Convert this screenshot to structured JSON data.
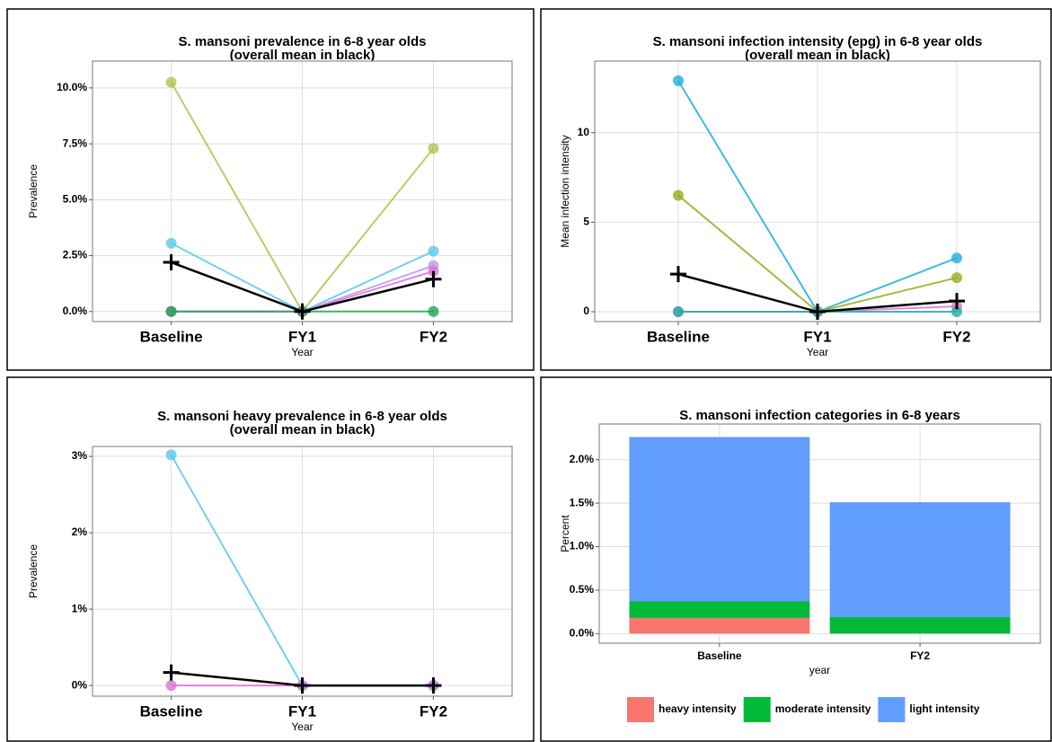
{
  "chart_data": [
    {
      "type": "line",
      "title": "S. mansoni prevalence in 6-8 year olds",
      "subtitle": "(overall mean in black)",
      "x_label": "Year",
      "y_label": "Prevalence",
      "categories": [
        "Baseline",
        "FY1",
        "FY2"
      ],
      "ylim": [
        -0.45,
        11.2
      ],
      "yticks": [
        {
          "value": 0,
          "label": "0.0%"
        },
        {
          "value": 2.5,
          "label": "2.5%"
        },
        {
          "value": 5,
          "label": "5.0%"
        },
        {
          "value": 7.5,
          "label": "7.5%"
        },
        {
          "value": 10,
          "label": "10.0%"
        }
      ],
      "grid": true,
      "series": [
        {
          "color": "#b8c050",
          "values": [
            10.25,
            0,
            7.3
          ]
        },
        {
          "color": "#5ac8ec",
          "values": [
            3.05,
            0,
            2.7
          ]
        },
        {
          "color": "#b59be8",
          "values": [
            0,
            0,
            2.05
          ]
        },
        {
          "color": "#e070d8",
          "values": [
            0,
            0,
            1.8
          ]
        },
        {
          "color": "#22a555",
          "values": [
            0,
            0,
            0
          ]
        },
        {
          "color": "#000000",
          "marker": "plus",
          "values": [
            2.2,
            0,
            1.45
          ]
        }
      ]
    },
    {
      "type": "line",
      "title": "S. mansoni infection intensity (epg) in 6-8 year olds",
      "subtitle": "(overall mean in black)",
      "x_label": "Year",
      "y_label": "Mean infection intensity",
      "categories": [
        "Baseline",
        "FY1",
        "FY2"
      ],
      "ylim": [
        -0.55,
        14
      ],
      "yticks": [
        0,
        5,
        10
      ],
      "grid": true,
      "series": [
        {
          "color": "#1ab0d8",
          "values": [
            12.9,
            0,
            3.0
          ]
        },
        {
          "color": "#9aaa1a",
          "values": [
            6.5,
            0,
            1.9
          ]
        },
        {
          "color": "#e070d8",
          "values": [
            0,
            0,
            0.3
          ]
        },
        {
          "color": "#20b0a0",
          "values": [
            0,
            0,
            0
          ]
        },
        {
          "color": "#000000",
          "marker": "plus",
          "values": [
            2.1,
            0,
            0.6
          ]
        }
      ]
    },
    {
      "type": "line",
      "title": "S. mansoni heavy prevalence in 6-8 year olds",
      "subtitle": "(overall mean in black)",
      "x_label": "Year",
      "y_label": "Prevalence",
      "categories": [
        "Baseline",
        "FY1",
        "FY2"
      ],
      "ylim": [
        -0.14,
        3.13
      ],
      "yticks": [
        {
          "value": 0,
          "label": "0%"
        },
        {
          "value": 1,
          "label": "1%"
        },
        {
          "value": 2,
          "label": "2%"
        },
        {
          "value": 3,
          "label": "3%"
        }
      ],
      "grid": true,
      "series": [
        {
          "color": "#5ac8ec",
          "values": [
            3.02,
            0,
            0
          ]
        },
        {
          "color": "#e070d8",
          "values": [
            0,
            0,
            0
          ]
        },
        {
          "color": "#000000",
          "marker": "plus",
          "values": [
            0.17,
            0,
            0
          ]
        }
      ]
    },
    {
      "type": "stacked_bar",
      "title": "S. mansoni infection categories in 6-8 years",
      "x_label": "year",
      "y_label": "Percent",
      "categories": [
        "Baseline",
        "FY2"
      ],
      "ylim": [
        -0.11,
        2.41
      ],
      "yticks": [
        {
          "value": 0,
          "label": "0.0%"
        },
        {
          "value": 0.5,
          "label": "0.5%"
        },
        {
          "value": 1,
          "label": "1.0%"
        },
        {
          "value": 1.5,
          "label": "1.5%"
        },
        {
          "value": 2,
          "label": "2.0%"
        }
      ],
      "grid": true,
      "legend": "bottom",
      "series": [
        {
          "name": "heavy intensity",
          "color": "#f8766d",
          "values": [
            0.18,
            0
          ]
        },
        {
          "name": "moderate intensity",
          "color": "#00ba38",
          "values": [
            0.19,
            0.19
          ]
        },
        {
          "name": "light intensity",
          "color": "#619cff",
          "values": [
            1.89,
            1.32
          ]
        }
      ]
    }
  ]
}
